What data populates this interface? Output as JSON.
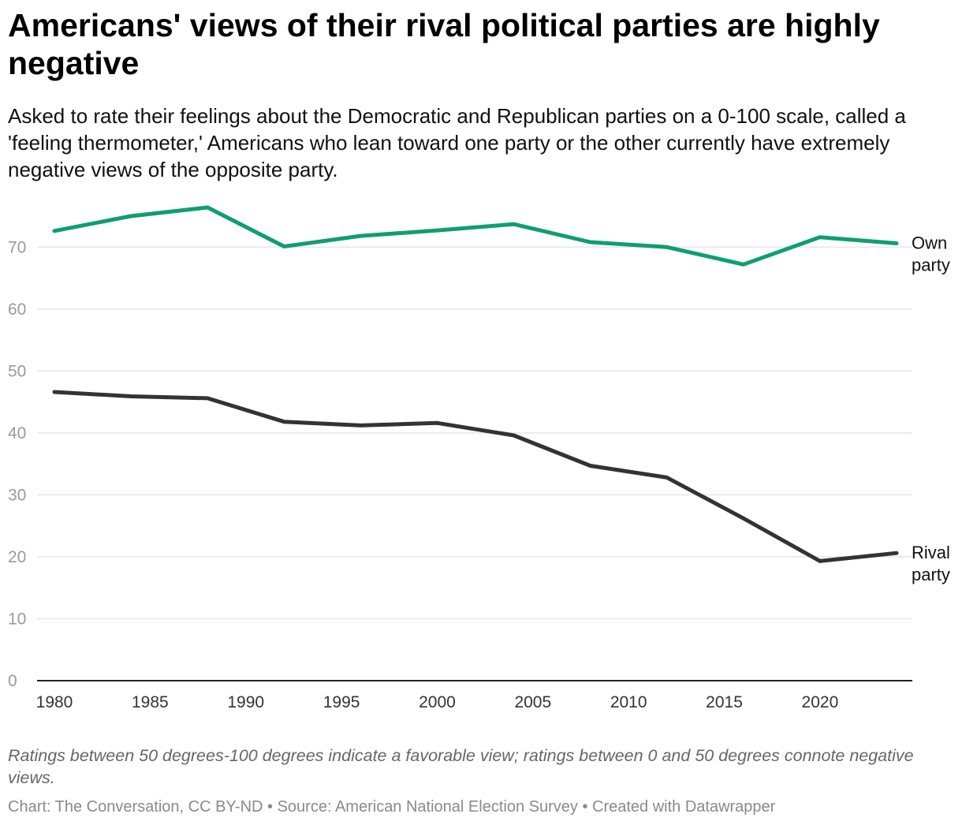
{
  "title": "Americans' views of their rival political parties are highly negative",
  "subtitle": "Asked to rate their feelings about the Democratic and Republican parties on a 0-100 scale, called a 'feeling thermometer,' Americans who lean toward one party or the other currently have extremely negative views of the opposite party.",
  "notes": "Ratings between 50 degrees-100 degrees indicate a favorable view; ratings between 0 and 50 degrees connote negative views.",
  "credits": "Chart: The Conversation, CC BY-ND • Source: American National Election Survey • Created with Datawrapper",
  "chart_data": {
    "type": "line",
    "x": [
      1980,
      1984,
      1988,
      1992,
      1996,
      2000,
      2004,
      2008,
      2012,
      2016,
      2020,
      2024
    ],
    "series": [
      {
        "name": "Own party",
        "label_lines": [
          "Own",
          "party"
        ],
        "color": "#0e9e72",
        "values": [
          72.6,
          75.0,
          76.4,
          70.1,
          71.8,
          72.7,
          73.7,
          70.8,
          70.0,
          67.2,
          71.6,
          70.6
        ]
      },
      {
        "name": "Rival party",
        "label_lines": [
          "Rival",
          "party"
        ],
        "color": "#333333",
        "values": [
          46.6,
          45.9,
          45.6,
          41.8,
          41.2,
          41.6,
          39.6,
          34.7,
          32.8,
          26.2,
          19.3,
          20.6
        ]
      }
    ],
    "xlim": [
      1980,
      2024
    ],
    "ylim": [
      0,
      76.4
    ],
    "y_ticks": [
      0,
      10,
      20,
      30,
      40,
      50,
      60,
      70
    ],
    "x_ticks": [
      1980,
      1985,
      1990,
      1995,
      2000,
      2005,
      2010,
      2015,
      2020
    ],
    "grid": true,
    "xlabel": "",
    "ylabel": ""
  }
}
